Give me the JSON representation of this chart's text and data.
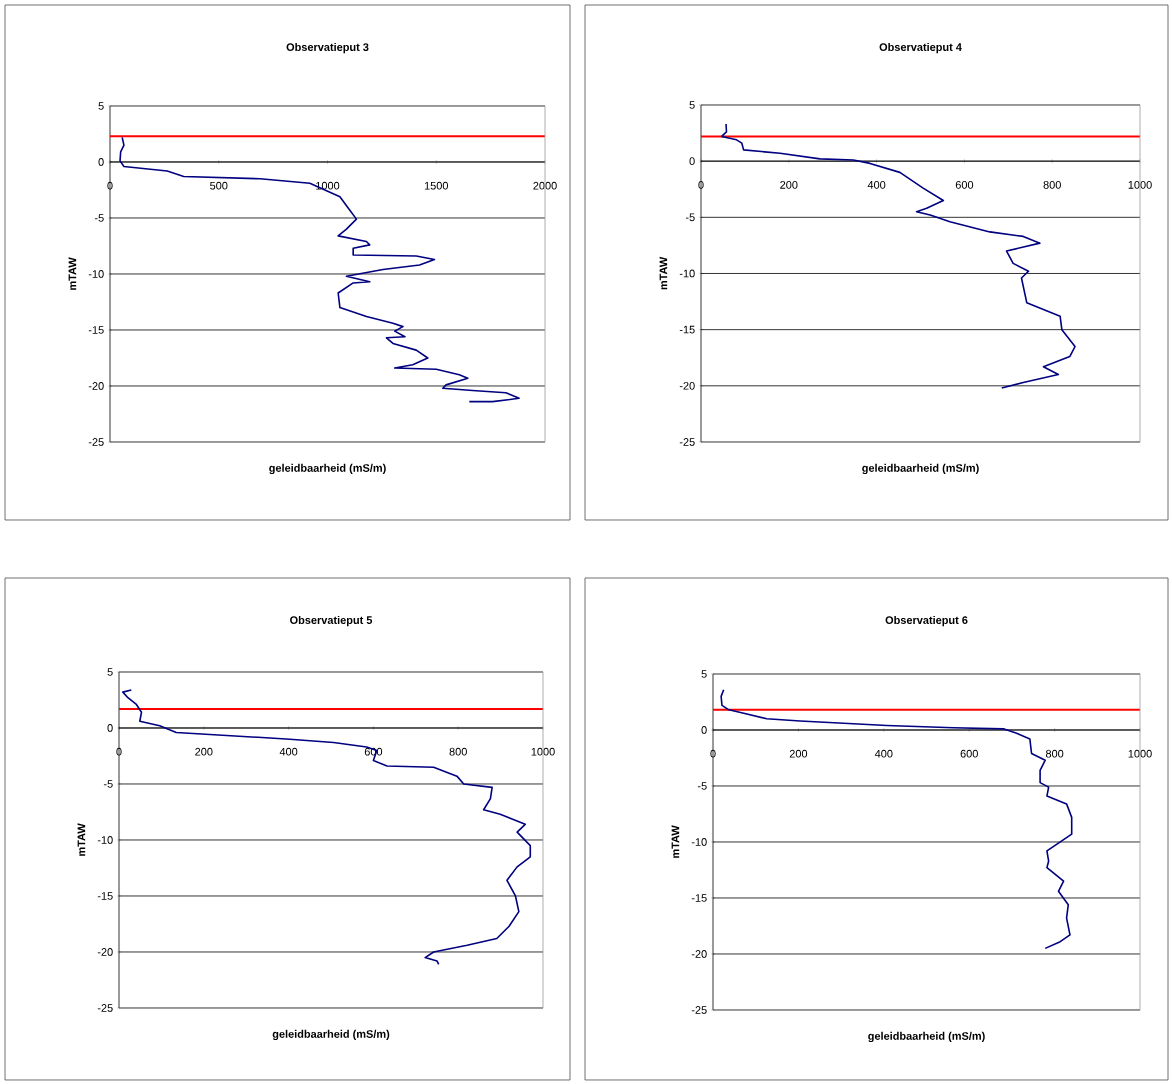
{
  "chart_data": [
    {
      "type": "line",
      "title": "Observatieput 3",
      "xlabel": "geleidbaarheid (mS/m)",
      "ylabel": "mTAW",
      "xlim": [
        0,
        2000
      ],
      "xticks": [
        0,
        500,
        1000,
        1500,
        2000
      ],
      "ylim": [
        -25,
        5
      ],
      "yticks": [
        -25,
        -20,
        -15,
        -10,
        -5,
        0,
        5
      ],
      "grid": "y",
      "ref_lines": [
        {
          "axis": "y",
          "value": 2.3,
          "color": "#ff0000"
        }
      ],
      "series": [
        {
          "color": "#000080",
          "x": [
            56,
            64,
            49,
            46,
            64,
            263,
            339,
            690,
            919,
            1057,
            1095,
            1133,
            1087,
            1049,
            1179,
            1194,
            1118,
            1118,
            1408,
            1492,
            1423,
            1255,
            1087,
            1194,
            1118,
            1049,
            1057,
            1179,
            1301,
            1347,
            1309,
            1356,
            1271,
            1301,
            1408,
            1461,
            1392,
            1309,
            1500,
            1606,
            1645,
            1545,
            1530,
            1667,
            1820,
            1881,
            1759,
            1652
          ],
          "values": [
            2.2,
            1.5,
            0.9,
            0.1,
            -0.4,
            -0.8,
            -1.3,
            -1.5,
            -1.9,
            -3.1,
            -4.1,
            -5.1,
            -6.0,
            -6.6,
            -7.1,
            -7.4,
            -7.7,
            -8.3,
            -8.4,
            -8.7,
            -9.2,
            -9.6,
            -10.2,
            -10.7,
            -10.8,
            -11.7,
            -13.0,
            -13.8,
            -14.4,
            -14.7,
            -15.1,
            -15.6,
            -15.7,
            -16.2,
            -16.8,
            -17.5,
            -18.1,
            -18.4,
            -18.5,
            -19.0,
            -19.3,
            -19.9,
            -20.2,
            -20.4,
            -20.6,
            -21.1,
            -21.4,
            -21.4
          ]
        }
      ]
    },
    {
      "type": "line",
      "title": "Observatieput 4",
      "xlabel": "geleidbaarheid (mS/m)",
      "ylabel": "mTAW",
      "xlim": [
        0,
        1000
      ],
      "xticks": [
        0,
        200,
        400,
        600,
        800,
        1000
      ],
      "ylim": [
        -25,
        5
      ],
      "yticks": [
        -25,
        -20,
        -15,
        -10,
        -5,
        0,
        5
      ],
      "grid": "y",
      "ref_lines": [
        {
          "axis": "y",
          "value": 2.2,
          "color": "#ff0000"
        }
      ],
      "series": [
        {
          "color": "#000080",
          "x": [
            57,
            58,
            47,
            81,
            93,
            97,
            180,
            271,
            347,
            385,
            453,
            506,
            552,
            514,
            491,
            522,
            567,
            658,
            734,
            772,
            696,
            711,
            746,
            730,
            742,
            818,
            822,
            852,
            840,
            780,
            814,
            734,
            685
          ],
          "values": [
            3.3,
            2.6,
            2.2,
            1.9,
            1.6,
            1.0,
            0.7,
            0.2,
            0.1,
            -0.2,
            -1.0,
            -2.4,
            -3.5,
            -4.2,
            -4.5,
            -4.8,
            -5.4,
            -6.3,
            -6.7,
            -7.3,
            -8.0,
            -9.1,
            -9.8,
            -10.4,
            -12.6,
            -13.8,
            -15.0,
            -16.5,
            -17.4,
            -18.3,
            -19.0,
            -19.7,
            -20.2
          ]
        }
      ]
    },
    {
      "type": "line",
      "title": "Observatieput 5",
      "xlabel": "geleidbaarheid (mS/m)",
      "ylabel": "mTAW",
      "xlim": [
        0,
        1000
      ],
      "xticks": [
        0,
        200,
        400,
        600,
        800,
        1000
      ],
      "ylim": [
        -25,
        5
      ],
      "yticks": [
        -25,
        -20,
        -15,
        -10,
        -5,
        0,
        5
      ],
      "grid": "y",
      "ref_lines": [
        {
          "axis": "y",
          "value": 1.7,
          "color": "#ff0000"
        }
      ],
      "series": [
        {
          "color": "#000080",
          "x": [
            29,
            9,
            21,
            41,
            53,
            49,
            96,
            135,
            269,
            403,
            506,
            584,
            608,
            600,
            632,
            742,
            797,
            813,
            880,
            876,
            860,
            899,
            958,
            939,
            970,
            970,
            939,
            915,
            935,
            943,
            920,
            891,
            821,
            742,
            722,
            750,
            754
          ],
          "values": [
            3.4,
            3.2,
            2.7,
            2.1,
            1.4,
            0.6,
            0.2,
            -0.4,
            -0.7,
            -1.0,
            -1.3,
            -1.7,
            -2.0,
            -2.9,
            -3.4,
            -3.5,
            -4.3,
            -5.0,
            -5.3,
            -6.3,
            -7.3,
            -7.7,
            -8.6,
            -9.3,
            -10.5,
            -11.5,
            -12.4,
            -13.6,
            -15.0,
            -16.4,
            -17.7,
            -18.8,
            -19.4,
            -20.0,
            -20.5,
            -20.8,
            -21.1
          ]
        }
      ]
    },
    {
      "type": "line",
      "title": "Observatieput 6",
      "xlabel": "geleidbaarheid (mS/m)",
      "ylabel": "mTAW",
      "xlim": [
        0,
        1000
      ],
      "xticks": [
        0,
        200,
        400,
        600,
        800,
        1000
      ],
      "ylim": [
        -25,
        5
      ],
      "yticks": [
        -25,
        -20,
        -15,
        -10,
        -5,
        0,
        5
      ],
      "grid": "y",
      "ref_lines": [
        {
          "axis": "y",
          "value": 1.8,
          "color": "#ff0000"
        }
      ],
      "series": [
        {
          "color": "#000080",
          "x": [
            25,
            19,
            21,
            37,
            72,
            126,
            204,
            306,
            407,
            563,
            680,
            711,
            742,
            746,
            778,
            766,
            766,
            786,
            782,
            828,
            840,
            840,
            809,
            782,
            786,
            782,
            821,
            809,
            832,
            828,
            836,
            813,
            778
          ],
          "values": [
            3.6,
            3.0,
            2.2,
            1.8,
            1.5,
            1.0,
            0.8,
            0.6,
            0.4,
            0.2,
            0.1,
            -0.3,
            -0.8,
            -2.1,
            -2.7,
            -3.6,
            -4.7,
            -5.1,
            -5.9,
            -6.6,
            -7.8,
            -9.3,
            -10.1,
            -10.8,
            -11.7,
            -12.3,
            -13.5,
            -14.4,
            -15.6,
            -16.8,
            -18.3,
            -18.9,
            -19.5
          ]
        }
      ]
    }
  ]
}
